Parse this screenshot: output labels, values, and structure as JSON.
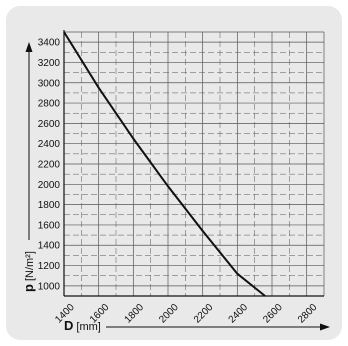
{
  "chart_data": {
    "type": "line",
    "title": "",
    "xlabel_symbol": "D",
    "xlabel_unit": "[mm]",
    "ylabel_symbol": "p",
    "ylabel_unit": "[N/m²]",
    "xlim": [
      1400,
      2900
    ],
    "ylim": [
      900,
      3500
    ],
    "x_ticks": [
      1400,
      1600,
      1800,
      2000,
      2200,
      2400,
      2600,
      2800
    ],
    "y_ticks": [
      1000,
      1200,
      1400,
      1600,
      1800,
      2000,
      2200,
      2400,
      2600,
      2800,
      3000,
      3200,
      3400
    ],
    "grid": true,
    "series": [
      {
        "x": [
          1400,
          1600,
          1800,
          2000,
          2200,
          2400,
          2560
        ],
        "y": [
          3500,
          2950,
          2450,
          1980,
          1540,
          1120,
          900
        ]
      }
    ],
    "colors": {
      "background": "#e9e9e9",
      "line": "#111111",
      "grid": "#555555"
    }
  }
}
